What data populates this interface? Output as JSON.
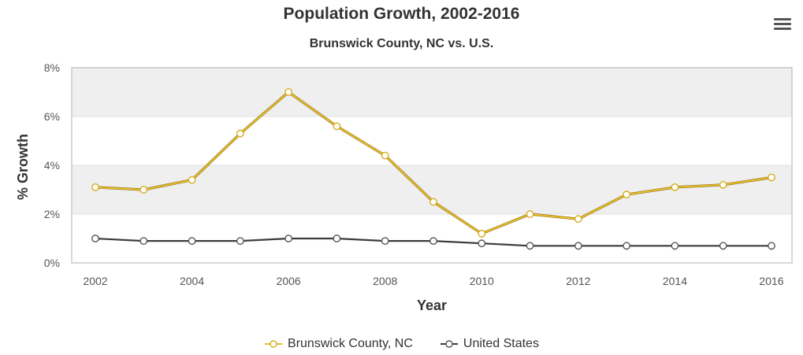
{
  "chart_data": {
    "type": "line",
    "title": "Population Growth, 2002-2016",
    "subtitle": "Brunswick County, NC vs. U.S.",
    "xlabel": "Year",
    "ylabel": "% Growth",
    "x": [
      2002,
      2003,
      2004,
      2005,
      2006,
      2007,
      2008,
      2009,
      2010,
      2011,
      2012,
      2013,
      2014,
      2015,
      2016
    ],
    "x_ticks": [
      "2002",
      "2004",
      "2006",
      "2008",
      "2010",
      "2012",
      "2014",
      "2016"
    ],
    "y_ticks": [
      "0%",
      "2%",
      "4%",
      "6%",
      "8%"
    ],
    "ylim": [
      0,
      8
    ],
    "series": [
      {
        "name": "Brunswick County, NC",
        "color": "#e8bf2a",
        "values": [
          3.1,
          3.0,
          3.4,
          5.3,
          7.0,
          5.6,
          4.4,
          2.5,
          1.2,
          2.0,
          1.8,
          2.8,
          3.1,
          3.2,
          3.5
        ]
      },
      {
        "name": "United States",
        "color": "#3c3c3c",
        "values": [
          1.0,
          0.9,
          0.9,
          0.9,
          1.0,
          1.0,
          0.9,
          0.9,
          0.8,
          0.7,
          0.7,
          0.7,
          0.7,
          0.7,
          0.7
        ]
      }
    ],
    "grid": true,
    "legend_position": "bottom"
  },
  "menu_icon": "hamburger-menu-icon"
}
